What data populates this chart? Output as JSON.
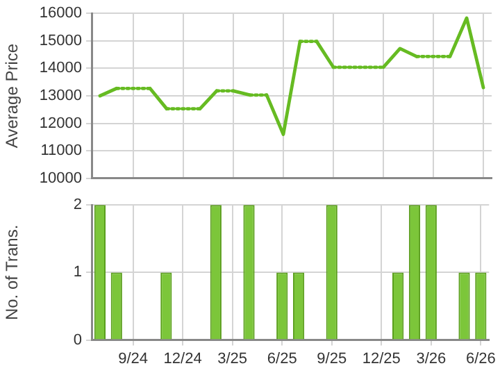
{
  "chart_data": [
    {
      "type": "line",
      "categories": [
        null,
        null,
        null,
        null,
        null,
        null,
        null,
        null,
        null,
        null,
        null,
        null,
        null,
        null,
        null,
        null,
        null,
        null,
        null,
        null,
        null,
        null,
        null,
        null
      ],
      "series": [
        {
          "color": "#66bb22",
          "values": [
            13000,
            13270,
            13270,
            13270,
            12530,
            12530,
            12530,
            13180,
            13180,
            13030,
            13030,
            11600,
            14980,
            14980,
            14040,
            14040,
            14040,
            14040,
            14720,
            14430,
            14430,
            14430,
            15830,
            13300
          ]
        }
      ],
      "ylabel": "Average Price",
      "ylim": [
        10000,
        16000
      ],
      "yticks": [
        10000,
        11000,
        12000,
        13000,
        14000,
        15000,
        16000
      ],
      "grid": true,
      "tick_labels": "y"
    },
    {
      "type": "bar",
      "categories": [
        null,
        null,
        "9/24",
        null,
        null,
        "12/24",
        null,
        null,
        "3/25",
        null,
        null,
        "6/25",
        null,
        null,
        "9/25",
        null,
        null,
        "12/25",
        null,
        null,
        "3/26",
        null,
        null,
        "6/26"
      ],
      "values": [
        2,
        1,
        0,
        0,
        1,
        0,
        0,
        2,
        0,
        2,
        0,
        1,
        1,
        0,
        2,
        0,
        0,
        0,
        1,
        2,
        2,
        0,
        1,
        1
      ],
      "color": "#7cc63a",
      "ylabel": "No. of Trans.",
      "ylim": [
        0,
        2
      ],
      "yticks": [
        0,
        1,
        2
      ],
      "grid": true
    }
  ]
}
